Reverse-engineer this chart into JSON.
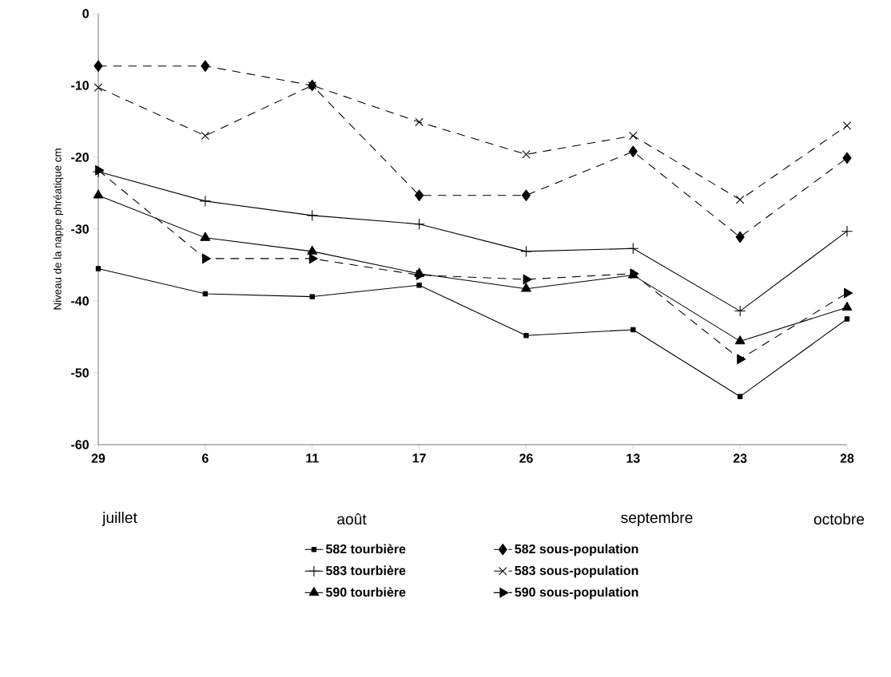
{
  "chart_data": {
    "type": "line",
    "ylabel": "Niveau de la nappe phréatique cm",
    "categories": [
      "29",
      "6",
      "11",
      "17",
      "26",
      "13",
      "23",
      "28"
    ],
    "annotations": [
      "juillet",
      "août",
      "septembre",
      "octobre"
    ],
    "ylim": [
      -60,
      0
    ],
    "yticks": [
      -60,
      -50,
      -40,
      -30,
      -20,
      -10,
      0
    ],
    "legend": "bottom",
    "series": [
      {
        "name": "582 tourbière",
        "color": "#000000",
        "marker": "square",
        "line_style": "solid",
        "values": [
          -35.5,
          -39,
          -39.4,
          -37.8,
          -44.8,
          -44,
          -53.3,
          -42.5
        ]
      },
      {
        "name": "582 sous-population",
        "color": "#000000",
        "marker": "diamond",
        "line_style": "dashed",
        "values": [
          -7.3,
          -7.3,
          -10,
          -25.3,
          -25.3,
          -19.2,
          -31.1,
          -20.1
        ]
      },
      {
        "name": "583 tourbière",
        "color": "#000000",
        "marker": "plus",
        "line_style": "solid",
        "values": [
          -22,
          -26.1,
          -28.1,
          -29.3,
          -33.1,
          -32.7,
          -41.4,
          -30.3
        ]
      },
      {
        "name": "583 sous-population",
        "color": "#000000",
        "marker": "x",
        "line_style": "dashed",
        "values": [
          -10.3,
          -17,
          -10,
          -15.1,
          -19.6,
          -17,
          -25.9,
          -15.6
        ]
      },
      {
        "name": "590 tourbière",
        "color": "#000000",
        "marker": "triangle",
        "line_style": "solid",
        "values": [
          -25.3,
          -31.2,
          -33.1,
          -36.2,
          -38.3,
          -36.4,
          -45.6,
          -40.9
        ]
      },
      {
        "name": "590 sous-population",
        "color": "#000000",
        "marker": "triangle-right",
        "line_style": "dashed",
        "values": [
          -21.8,
          -34.1,
          -34.1,
          -36.4,
          -37,
          -36.2,
          -48.1,
          -38.9
        ]
      }
    ]
  }
}
